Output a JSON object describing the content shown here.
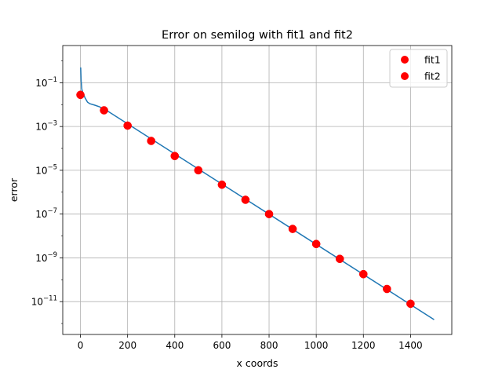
{
  "chart_data": {
    "type": "line",
    "title": "Error on semilog with fit1 and fit2",
    "xlabel": "x coords",
    "ylabel": "error",
    "xlim": [
      -75,
      1575
    ],
    "ylim_log10": [
      -12.5,
      0.7
    ],
    "yscale": "log",
    "grid": true,
    "legend_position": "top-right",
    "x_ticks": [
      0,
      200,
      400,
      600,
      800,
      1000,
      1200,
      1400
    ],
    "x_tick_labels": [
      "0",
      "200",
      "400",
      "600",
      "800",
      "1000",
      "1200",
      "1400"
    ],
    "y_ticks_log10": [
      -11,
      -9,
      -7,
      -5,
      -3,
      -1
    ],
    "y_tick_labels": [
      {
        "base": "10",
        "exp": "−11"
      },
      {
        "base": "10",
        "exp": "−9"
      },
      {
        "base": "10",
        "exp": "−7"
      },
      {
        "base": "10",
        "exp": "−5"
      },
      {
        "base": "10",
        "exp": "−3"
      },
      {
        "base": "10",
        "exp": "−1"
      }
    ],
    "series": [
      {
        "name": "error",
        "kind": "line",
        "color": "#1f77b4",
        "x": [
          1,
          3,
          6,
          10,
          20,
          30,
          40,
          60,
          80,
          100,
          1500
        ],
        "y": [
          0.5,
          0.12,
          0.05,
          0.035,
          0.02,
          0.013,
          0.011,
          0.0095,
          0.008,
          0.0065,
          1.5e-12
        ]
      },
      {
        "name": "fit1",
        "kind": "markers",
        "color": "#ff0000",
        "x": [
          0,
          100,
          200,
          300,
          400,
          500,
          600,
          700,
          800,
          900,
          1000,
          1100,
          1200,
          1300,
          1400
        ],
        "y": [
          0.028,
          0.0055,
          0.0011,
          0.00022,
          4.5e-05,
          1e-05,
          2.2e-06,
          4.5e-07,
          1e-07,
          2.1e-08,
          4.3e-09,
          9e-10,
          1.8e-10,
          3.8e-11,
          8e-12
        ]
      },
      {
        "name": "fit2",
        "kind": "markers",
        "color": "#ff0000",
        "x": [
          0,
          100,
          200,
          300,
          400,
          500,
          600,
          700,
          800,
          900,
          1000,
          1100,
          1200,
          1300,
          1400
        ],
        "y": [
          0.028,
          0.0055,
          0.0011,
          0.00022,
          4.5e-05,
          1e-05,
          2.2e-06,
          4.5e-07,
          1e-07,
          2.1e-08,
          4.3e-09,
          9e-10,
          1.8e-10,
          3.8e-11,
          8e-12
        ]
      }
    ],
    "legend": [
      {
        "label": "fit1",
        "color": "#ff0000"
      },
      {
        "label": "fit2",
        "color": "#ff0000"
      }
    ]
  }
}
